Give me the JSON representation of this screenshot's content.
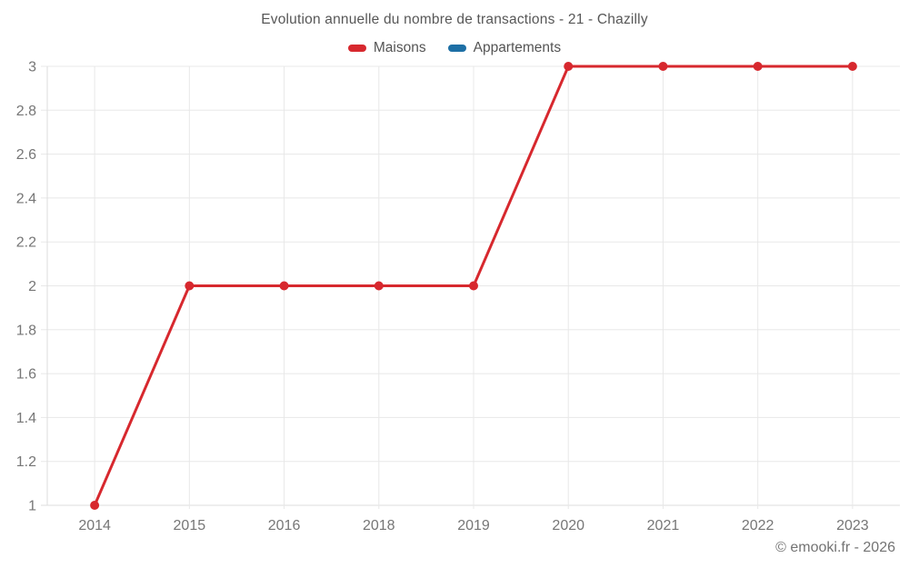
{
  "header": {
    "title": "Evolution annuelle du nombre de transactions - 21 - Chazilly"
  },
  "footer": {
    "copyright": "© emooki.fr - 2026"
  },
  "chart_data": {
    "type": "line",
    "title": "Evolution annuelle du nombre de transactions - 21 - Chazilly",
    "categories": [
      "2014",
      "2015",
      "2016",
      "2018",
      "2019",
      "2020",
      "2021",
      "2022",
      "2023"
    ],
    "series": [
      {
        "name": "Maisons",
        "color": "#d7282e",
        "values": [
          1,
          2,
          2,
          2,
          2,
          3,
          3,
          3,
          3
        ],
        "marker": "circle"
      },
      {
        "name": "Appartements",
        "color": "#1d6fa5",
        "values": [],
        "marker": "circle"
      }
    ],
    "xlabel": "",
    "ylabel": "",
    "ylim": [
      1,
      3
    ],
    "ytick_step": 0.2,
    "ytick_labels": [
      "1",
      "1.2",
      "1.4",
      "1.6",
      "1.8",
      "2",
      "2.2",
      "2.4",
      "2.6",
      "2.8",
      "3"
    ],
    "grid": true,
    "legend_position": "top",
    "grid_color": "#e8e8e8",
    "axis_line_color": "#dedede",
    "axis_text_color": "#767676"
  }
}
